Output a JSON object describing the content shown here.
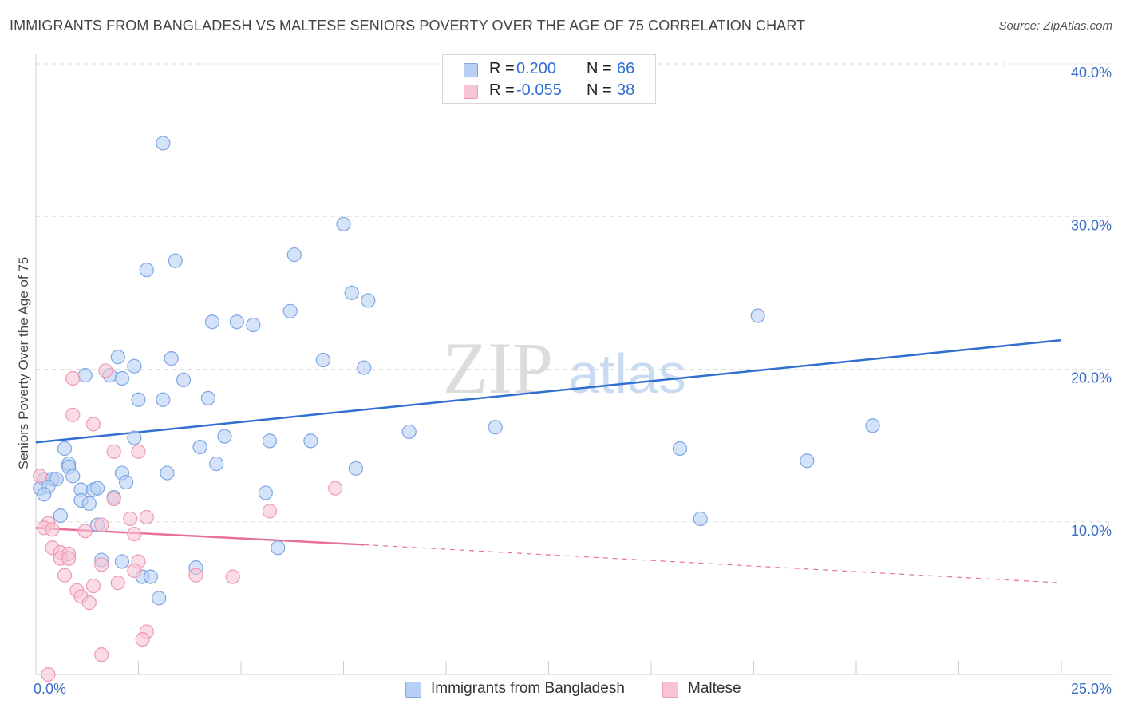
{
  "title": "IMMIGRANTS FROM BANGLADESH VS MALTESE SENIORS POVERTY OVER THE AGE OF 75 CORRELATION CHART",
  "source": "Source: ZipAtlas.com",
  "watermark": {
    "zip": "ZIP",
    "atlas": "atlas"
  },
  "colors": {
    "blue_fill": "#b8d0f3",
    "blue_stroke": "#7ea6e3",
    "blue_line": "#2f6fd1",
    "pink_fill": "#f7c4d4",
    "pink_stroke": "#ee9ab5",
    "pink_line": "#e8709a",
    "axis_tick_text": "#3a6fc7",
    "grid": "#dddddd"
  },
  "stats_box": {
    "rows": [
      {
        "r_label": "R =",
        "r_value": "0.200",
        "n_label": "N =",
        "n_value": "66",
        "series": "blue"
      },
      {
        "r_label": "R =",
        "r_value": "-0.055",
        "n_label": "N =",
        "n_value": "38",
        "series": "pink"
      }
    ]
  },
  "legend": {
    "items": [
      {
        "label": "Immigrants from Bangladesh",
        "series": "blue"
      },
      {
        "label": "Maltese",
        "series": "pink"
      }
    ]
  },
  "chart_data": {
    "type": "scatter",
    "title": "IMMIGRANTS FROM BANGLADESH VS MALTESE SENIORS POVERTY OVER THE AGE OF 75 CORRELATION CHART",
    "xlabel": "",
    "ylabel": "Seniors Poverty Over the Age of 75",
    "xlim": [
      0,
      25
    ],
    "ylim": [
      0,
      40
    ],
    "x_tick_labels": [
      "0.0%",
      "25.0%"
    ],
    "y_ticks": [
      10,
      20,
      30,
      40
    ],
    "y_tick_labels": [
      "10.0%",
      "20.0%",
      "30.0%",
      "40.0%"
    ],
    "grid": true,
    "legend_position": "bottom-center",
    "series": [
      {
        "name": "Immigrants from Bangladesh",
        "color": "#b8d0f3",
        "points": [
          [
            3.1,
            34.8
          ],
          [
            7.5,
            29.5
          ],
          [
            2.7,
            26.5
          ],
          [
            3.4,
            27.1
          ],
          [
            6.3,
            27.5
          ],
          [
            7.7,
            25.0
          ],
          [
            8.1,
            24.5
          ],
          [
            6.2,
            23.8
          ],
          [
            4.3,
            23.1
          ],
          [
            4.9,
            23.1
          ],
          [
            5.3,
            22.9
          ],
          [
            17.6,
            23.5
          ],
          [
            2.0,
            20.8
          ],
          [
            3.3,
            20.7
          ],
          [
            7.0,
            20.6
          ],
          [
            2.4,
            20.2
          ],
          [
            8.0,
            20.1
          ],
          [
            1.2,
            19.6
          ],
          [
            1.8,
            19.6
          ],
          [
            2.1,
            19.4
          ],
          [
            3.6,
            19.3
          ],
          [
            4.2,
            18.1
          ],
          [
            2.5,
            18.0
          ],
          [
            3.1,
            18.0
          ],
          [
            20.4,
            16.3
          ],
          [
            9.1,
            15.9
          ],
          [
            11.2,
            16.2
          ],
          [
            2.4,
            15.5
          ],
          [
            4.6,
            15.6
          ],
          [
            5.7,
            15.3
          ],
          [
            6.7,
            15.3
          ],
          [
            4.0,
            14.9
          ],
          [
            0.7,
            14.8
          ],
          [
            15.7,
            14.8
          ],
          [
            18.8,
            14.0
          ],
          [
            0.8,
            13.8
          ],
          [
            0.8,
            13.6
          ],
          [
            4.4,
            13.8
          ],
          [
            7.8,
            13.5
          ],
          [
            2.1,
            13.2
          ],
          [
            3.2,
            13.2
          ],
          [
            0.9,
            13.0
          ],
          [
            0.2,
            12.8
          ],
          [
            0.4,
            12.8
          ],
          [
            0.5,
            12.8
          ],
          [
            2.2,
            12.6
          ],
          [
            0.1,
            12.2
          ],
          [
            0.3,
            12.3
          ],
          [
            1.1,
            12.1
          ],
          [
            1.4,
            12.1
          ],
          [
            1.5,
            12.2
          ],
          [
            5.6,
            11.9
          ],
          [
            0.2,
            11.8
          ],
          [
            1.9,
            11.6
          ],
          [
            1.1,
            11.4
          ],
          [
            1.3,
            11.2
          ],
          [
            0.6,
            10.4
          ],
          [
            16.2,
            10.2
          ],
          [
            1.5,
            9.8
          ],
          [
            5.9,
            8.3
          ],
          [
            1.6,
            7.5
          ],
          [
            2.1,
            7.4
          ],
          [
            3.9,
            7.0
          ],
          [
            2.6,
            6.4
          ],
          [
            2.8,
            6.4
          ],
          [
            3.0,
            5.0
          ]
        ]
      },
      {
        "name": "Maltese",
        "color": "#f7c4d4",
        "points": [
          [
            1.7,
            19.9
          ],
          [
            0.9,
            19.4
          ],
          [
            0.9,
            17.0
          ],
          [
            1.4,
            16.4
          ],
          [
            1.9,
            14.6
          ],
          [
            2.5,
            14.6
          ],
          [
            0.1,
            13.0
          ],
          [
            7.3,
            12.2
          ],
          [
            1.9,
            11.5
          ],
          [
            5.7,
            10.7
          ],
          [
            2.7,
            10.3
          ],
          [
            2.3,
            10.2
          ],
          [
            0.3,
            9.9
          ],
          [
            1.6,
            9.8
          ],
          [
            0.2,
            9.6
          ],
          [
            0.4,
            9.5
          ],
          [
            1.2,
            9.4
          ],
          [
            2.4,
            9.2
          ],
          [
            0.4,
            8.3
          ],
          [
            0.6,
            8.0
          ],
          [
            0.8,
            7.9
          ],
          [
            0.6,
            7.6
          ],
          [
            0.8,
            7.6
          ],
          [
            2.5,
            7.4
          ],
          [
            1.6,
            7.2
          ],
          [
            2.4,
            6.8
          ],
          [
            0.7,
            6.5
          ],
          [
            3.9,
            6.5
          ],
          [
            4.8,
            6.4
          ],
          [
            2.0,
            6.0
          ],
          [
            1.4,
            5.8
          ],
          [
            1.0,
            5.5
          ],
          [
            1.1,
            5.1
          ],
          [
            1.3,
            4.7
          ],
          [
            2.7,
            2.8
          ],
          [
            2.6,
            2.3
          ],
          [
            1.6,
            1.3
          ],
          [
            0.3,
            0.0
          ]
        ]
      }
    ],
    "trend_lines": [
      {
        "series": "Immigrants from Bangladesh",
        "x": [
          0,
          25
        ],
        "y": [
          15.2,
          21.9
        ],
        "style": "solid"
      },
      {
        "series": "Maltese",
        "x": [
          0,
          8.0,
          25
        ],
        "y": [
          9.6,
          8.5,
          6.0
        ],
        "style": "solid-then-dashed"
      }
    ]
  }
}
